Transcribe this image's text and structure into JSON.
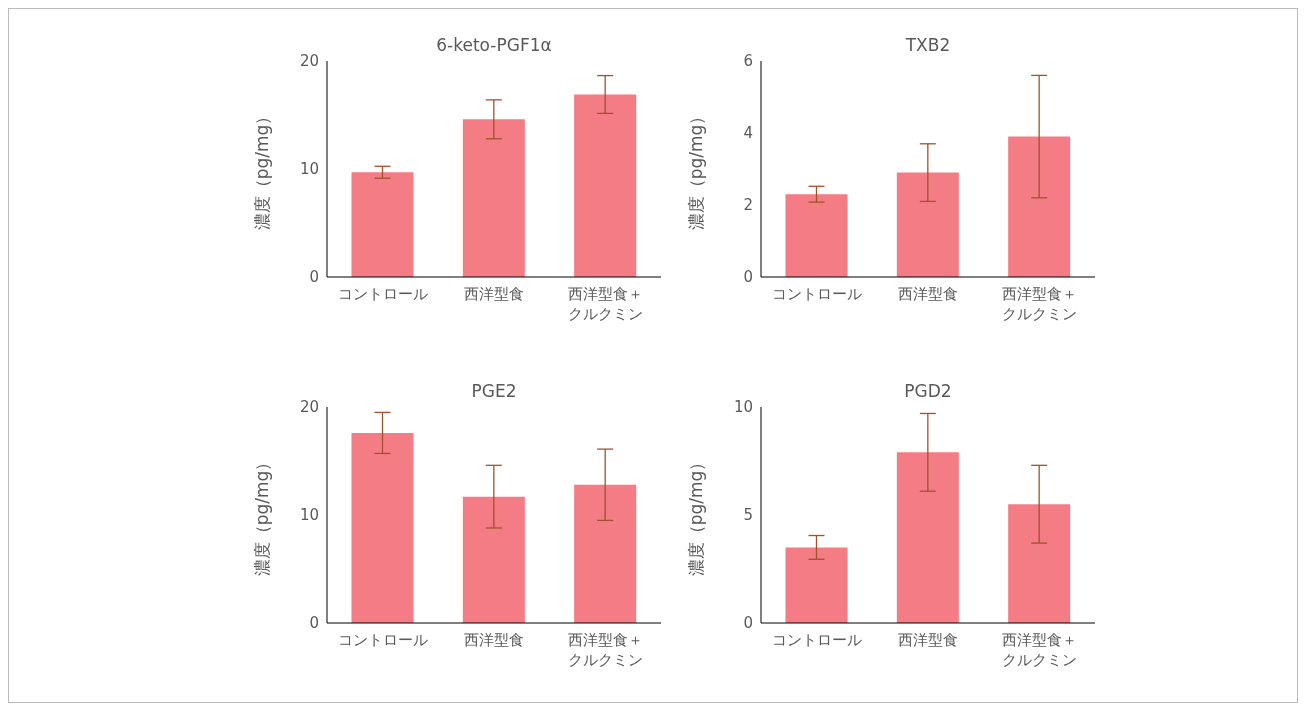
{
  "chart_data": [
    {
      "type": "bar",
      "title": "6-keto-PGF1α",
      "ylabel": "濃度（pg/mg）",
      "categories": [
        "コントロール",
        "西洋型食",
        "西洋型食＋クルクミン"
      ],
      "values": [
        9.7,
        14.6,
        16.9
      ],
      "errors": [
        0.55,
        1.8,
        1.75
      ],
      "color": "#f47c84",
      "ylim": [
        0,
        20
      ],
      "yticks": [
        0,
        10,
        20
      ],
      "grid": false,
      "legend": false
    },
    {
      "type": "bar",
      "title": "TXB2",
      "ylabel": "濃度（pg/mg）",
      "categories": [
        "コントロール",
        "西洋型食",
        "西洋型食＋クルクミン"
      ],
      "values": [
        2.3,
        2.9,
        3.9
      ],
      "errors": [
        0.22,
        0.8,
        1.7
      ],
      "color": "#f47c84",
      "ylim": [
        0,
        6
      ],
      "yticks": [
        0,
        2,
        4,
        6
      ],
      "grid": false,
      "legend": false
    },
    {
      "type": "bar",
      "title": "PGE2",
      "ylabel": "濃度（pg/mg）",
      "categories": [
        "コントロール",
        "西洋型食",
        "西洋型食＋クルクミン"
      ],
      "values": [
        17.6,
        11.7,
        12.8
      ],
      "errors": [
        1.9,
        2.9,
        3.3
      ],
      "color": "#f47c84",
      "ylim": [
        0,
        20
      ],
      "yticks": [
        0,
        10,
        20
      ],
      "grid": false,
      "legend": false
    },
    {
      "type": "bar",
      "title": "PGD2",
      "ylabel": "濃度（pg/mg）",
      "categories": [
        "コントロール",
        "西洋型食",
        "西洋型食＋クルクミン"
      ],
      "values": [
        3.5,
        7.9,
        5.5
      ],
      "errors": [
        0.55,
        1.8,
        1.8
      ],
      "color": "#f47c84",
      "ylim": [
        0,
        10
      ],
      "yticks": [
        0,
        5,
        10
      ],
      "grid": false,
      "legend": false
    }
  ]
}
